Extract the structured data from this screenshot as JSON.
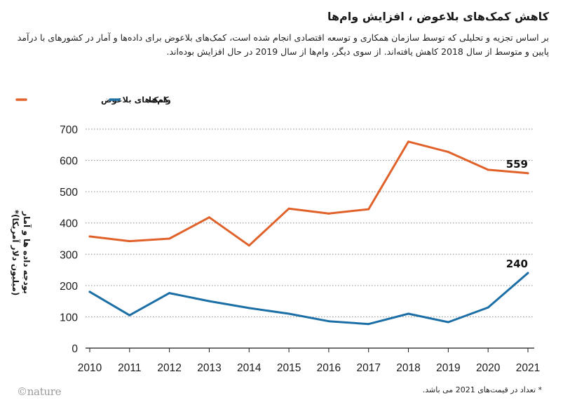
{
  "title": "کاهش کمک‌های بلاعوض ، افزایش وام‌ها",
  "subtitle": "بر اساس تجزیه و تحلیلی که توسط سازمان همکاری و توسعه اقتصادی انجام شده است، کمک‌های بلاعوض برای داده‌ها و آمار در کشورهای با درآمد پایین و متوسط از سال 2018 کاهش یافته‌اند. از سوی دیگر، وام‌ها از سال 2019 در حال افزایش بوده‌اند.",
  "footnote": "* تعداد در قیمت‌های 2021 می باشد.",
  "logo": "©nature",
  "colors": {
    "grants": "#e0622a",
    "loans": "#1c6fa6"
  },
  "chart_data": {
    "type": "line",
    "x": [
      2010,
      2011,
      2012,
      2013,
      2014,
      2015,
      2016,
      2017,
      2018,
      2019,
      2020,
      2021
    ],
    "series": [
      {
        "name": "کمک‌های بلاعوض",
        "color": "#e0622a",
        "values": [
          357,
          342,
          350,
          418,
          328,
          446,
          430,
          444,
          660,
          627,
          570,
          559
        ],
        "end_label": "559"
      },
      {
        "name": "وام‌ها",
        "color": "#1c6fa6",
        "values": [
          180,
          105,
          176,
          150,
          128,
          110,
          86,
          77,
          110,
          83,
          130,
          240
        ],
        "end_label": "240"
      }
    ],
    "ylabel_line1": "بودجه داده ها و آمار",
    "ylabel_line2": "(میلیون دلار آمریکا)*",
    "xlabel": "",
    "ylim": [
      0,
      700
    ],
    "yticks": [
      0,
      100,
      200,
      300,
      400,
      500,
      600,
      700
    ],
    "grid": "horizontal dotted",
    "legend_position": "top-left"
  }
}
